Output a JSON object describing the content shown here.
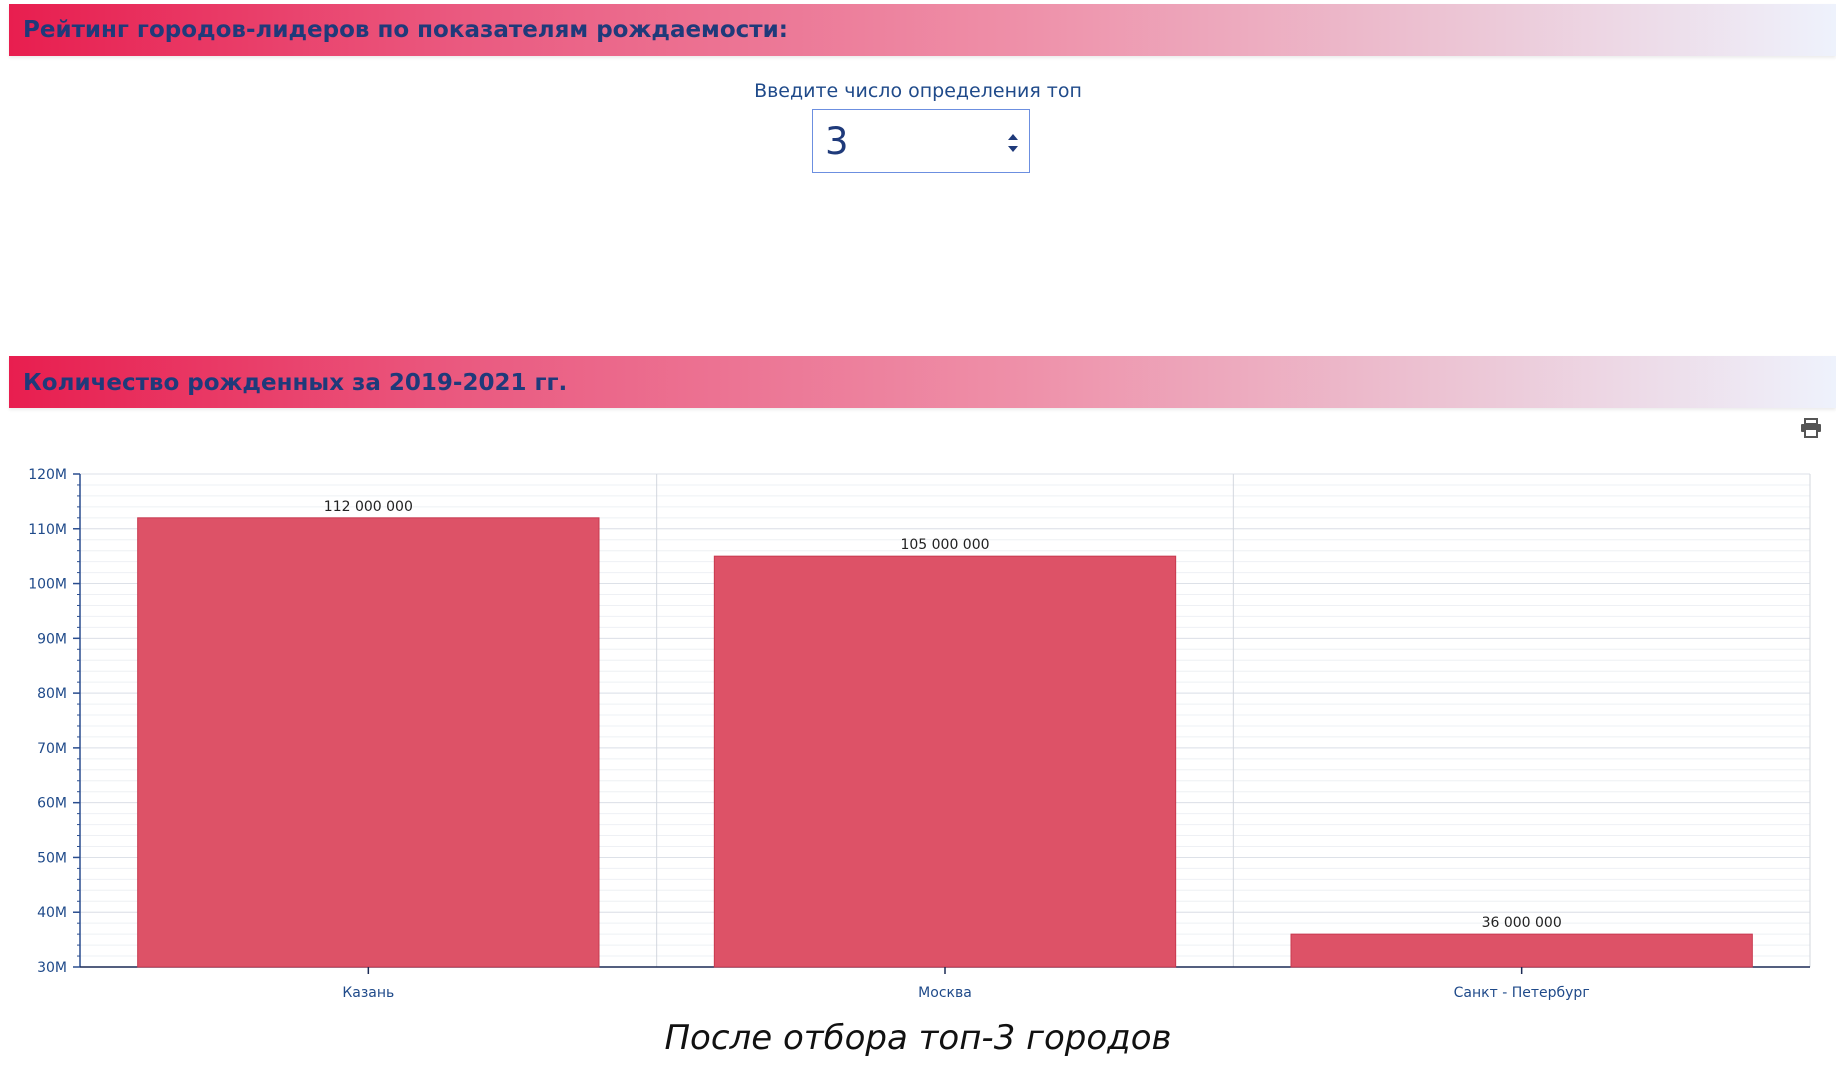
{
  "header1": {
    "title": "Рейтинг городов-лидеров по показателям рождаемости:"
  },
  "top_selector": {
    "label": "Введите число определения топ",
    "value": "3"
  },
  "header2": {
    "title": "Количество рожденных за 2019-2021 гг."
  },
  "toolbar": {
    "print_icon": "printer-icon"
  },
  "chart_data": {
    "type": "bar",
    "categories": [
      "Казань",
      "Москва",
      "Санкт - Петербург"
    ],
    "values": [
      112000000,
      105000000,
      36000000
    ],
    "value_labels": [
      "112 000 000",
      "105 000 000",
      "36 000 000"
    ],
    "ylim": [
      30000000,
      120000000
    ],
    "yticks": [
      "30M",
      "40M",
      "50M",
      "60M",
      "70M",
      "80M",
      "90M",
      "100M",
      "110M",
      "120M"
    ],
    "bar_color": "#dd5267",
    "grid": true
  },
  "caption": "После отбора топ-3 городов"
}
